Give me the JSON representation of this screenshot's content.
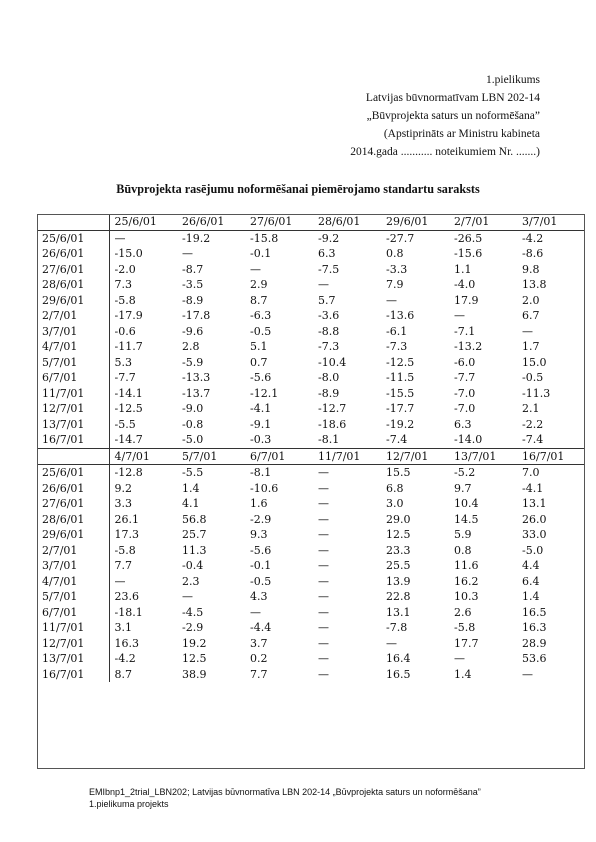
{
  "header": {
    "line1": "1.pielikums",
    "line2": "Latvijas būvnormatīvam LBN 202-14",
    "line3": "„Būvprojekta saturs un noformēšana”",
    "line4": "(Apstiprināts ar Ministru kabineta",
    "line5": "2014.gada  ...........  noteikumiem Nr. .......)"
  },
  "title": "Būvprojekta rasējumu noformēšanai piemērojamo standartu saraksts",
  "table": {
    "row_labels": [
      "25/6/01",
      "26/6/01",
      "27/6/01",
      "28/6/01",
      "29/6/01",
      "2/7/01",
      "3/7/01",
      "4/7/01",
      "5/7/01",
      "6/7/01",
      "11/7/01",
      "12/7/01",
      "13/7/01",
      "16/7/01"
    ],
    "block1": {
      "headers": [
        "25/6/01",
        "26/6/01",
        "27/6/01",
        "28/6/01",
        "29/6/01",
        "2/7/01",
        "3/7/01"
      ],
      "rows": [
        [
          "—",
          "-19.2",
          "-15.8",
          "-9.2",
          "-27.7",
          "-26.5",
          "-4.2"
        ],
        [
          "-15.0",
          "—",
          "-0.1",
          "6.3",
          "0.8",
          "-15.6",
          "-8.6"
        ],
        [
          "-2.0",
          "-8.7",
          "—",
          "-7.5",
          "-3.3",
          "1.1",
          "9.8"
        ],
        [
          "7.3",
          "-3.5",
          "2.9",
          "—",
          "7.9",
          "-4.0",
          "13.8"
        ],
        [
          "-5.8",
          "-8.9",
          "8.7",
          "5.7",
          "—",
          "17.9",
          "2.0"
        ],
        [
          "-17.9",
          "-17.8",
          "-6.3",
          "-3.6",
          "-13.6",
          "—",
          "6.7"
        ],
        [
          "-0.6",
          "-9.6",
          "-0.5",
          "-8.8",
          "-6.1",
          "-7.1",
          "—"
        ],
        [
          "-11.7",
          "2.8",
          "5.1",
          "-7.3",
          "-7.3",
          "-13.2",
          "1.7"
        ],
        [
          "5.3",
          "-5.9",
          "0.7",
          "-10.4",
          "-12.5",
          "-6.0",
          "15.0"
        ],
        [
          "-7.7",
          "-13.3",
          "-5.6",
          "-8.0",
          "-11.5",
          "-7.7",
          "-0.5"
        ],
        [
          "-14.1",
          "-13.7",
          "-12.1",
          "-8.9",
          "-15.5",
          "-7.0",
          "-11.3"
        ],
        [
          "-12.5",
          "-9.0",
          "-4.1",
          "-12.7",
          "-17.7",
          "-7.0",
          "2.1"
        ],
        [
          "-5.5",
          "-0.8",
          "-9.1",
          "-18.6",
          "-19.2",
          "6.3",
          "-2.2"
        ],
        [
          "-14.7",
          "-5.0",
          "-0.3",
          "-8.1",
          "-7.4",
          "-14.0",
          "-7.4"
        ]
      ]
    },
    "block2": {
      "headers": [
        "4/7/01",
        "5/7/01",
        "6/7/01",
        "11/7/01",
        "12/7/01",
        "13/7/01",
        "16/7/01"
      ],
      "rows": [
        [
          "-12.8",
          "-5.5",
          "-8.1",
          "—",
          "15.5",
          "-5.2",
          "7.0"
        ],
        [
          "9.2",
          "1.4",
          "-10.6",
          "—",
          "6.8",
          "9.7",
          "-4.1"
        ],
        [
          "3.3",
          "4.1",
          "1.6",
          "—",
          "3.0",
          "10.4",
          "13.1"
        ],
        [
          "26.1",
          "56.8",
          "-2.9",
          "—",
          "29.0",
          "14.5",
          "26.0"
        ],
        [
          "17.3",
          "25.7",
          "9.3",
          "—",
          "12.5",
          "5.9",
          "33.0"
        ],
        [
          "-5.8",
          "11.3",
          "-5.6",
          "—",
          "23.3",
          "0.8",
          "-5.0"
        ],
        [
          "7.7",
          "-0.4",
          "-0.1",
          "—",
          "25.5",
          "11.6",
          "4.4"
        ],
        [
          "—",
          "2.3",
          "-0.5",
          "—",
          "13.9",
          "16.2",
          "6.4"
        ],
        [
          "23.6",
          "—",
          "4.3",
          "—",
          "22.8",
          "10.3",
          "1.4"
        ],
        [
          "-18.1",
          "-4.5",
          "—",
          "—",
          "13.1",
          "2.6",
          "16.5"
        ],
        [
          "3.1",
          "-2.9",
          "-4.4",
          "—",
          "-7.8",
          "-5.8",
          "16.3"
        ],
        [
          "16.3",
          "19.2",
          "3.7",
          "—",
          "—",
          "17.7",
          "28.9"
        ],
        [
          "-4.2",
          "12.5",
          "0.2",
          "—",
          "16.4",
          "—",
          "53.6"
        ],
        [
          "8.7",
          "38.9",
          "7.7",
          "—",
          "16.5",
          "1.4",
          "—"
        ]
      ]
    }
  },
  "footer": {
    "line1": "EMIbnp1_2trial_LBN202; Latvijas būvnormatīva LBN 202-14 „Būvprojekta saturs un noformēšana”",
    "line2": "1.pielikuma projekts"
  }
}
